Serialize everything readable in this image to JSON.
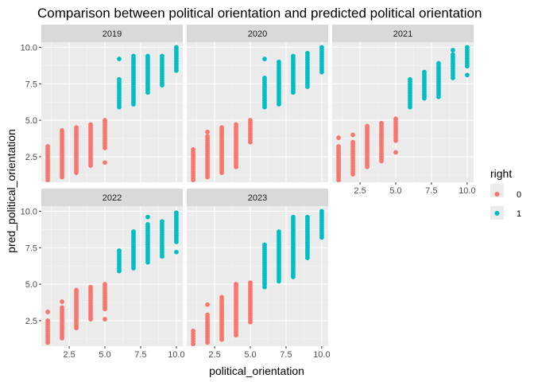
{
  "chart_data": {
    "type": "scatter",
    "title": "Comparison between political orientation and predicted political orientation",
    "xlabel": "political_orientation",
    "ylabel": "pred_political_orientation",
    "xlim": [
      0.55,
      10.45
    ],
    "ylim": [
      0.75,
      10.35
    ],
    "x_ticks": [
      2.5,
      5.0,
      7.5,
      10.0
    ],
    "x_tick_labels": [
      "2.5",
      "5.0",
      "7.5",
      "10.0"
    ],
    "y_ticks": [
      2.5,
      5.0,
      7.5,
      10.0
    ],
    "y_tick_labels": [
      "2.5",
      "5.0",
      "7.5",
      "10.0"
    ],
    "grid": true,
    "facets": [
      {
        "label": "2019",
        "ranges": [
          [
            1,
            0.9,
            3.2
          ],
          [
            2,
            1.1,
            4.3
          ],
          [
            3,
            1.4,
            4.5
          ],
          [
            4,
            1.9,
            4.7
          ],
          [
            5,
            3.1,
            5.0
          ],
          [
            6,
            5.9,
            7.8
          ],
          [
            7,
            6.1,
            9.4
          ],
          [
            8,
            6.9,
            9.3
          ],
          [
            9,
            7.4,
            9.4
          ],
          [
            10,
            8.4,
            10.0
          ]
        ],
        "outliers": [
          [
            5,
            2.1
          ],
          [
            6,
            9.2
          ],
          [
            8,
            9.4
          ]
        ]
      },
      {
        "label": "2020",
        "ranges": [
          [
            1,
            0.9,
            3.0
          ],
          [
            2,
            1.1,
            3.9
          ],
          [
            3,
            1.4,
            4.5
          ],
          [
            4,
            1.8,
            4.7
          ],
          [
            5,
            3.5,
            5.0
          ],
          [
            6,
            5.9,
            7.9
          ],
          [
            7,
            6.1,
            9.0
          ],
          [
            8,
            6.9,
            9.4
          ],
          [
            9,
            7.3,
            9.6
          ],
          [
            10,
            8.3,
            10.0
          ]
        ],
        "outliers": [
          [
            2,
            4.2
          ],
          [
            6,
            9.2
          ]
        ]
      },
      {
        "label": "2021",
        "ranges": [
          [
            1,
            0.9,
            3.2
          ],
          [
            2,
            1.3,
            3.5
          ],
          [
            3,
            1.8,
            4.6
          ],
          [
            4,
            2.2,
            4.8
          ],
          [
            5,
            3.6,
            5.1
          ],
          [
            6,
            5.9,
            7.8
          ],
          [
            7,
            6.5,
            8.3
          ],
          [
            8,
            6.6,
            8.9
          ],
          [
            9,
            7.9,
            9.5
          ],
          [
            10,
            8.7,
            10.0
          ]
        ],
        "outliers": [
          [
            1,
            3.8
          ],
          [
            2,
            4.0
          ],
          [
            5,
            2.8
          ],
          [
            9,
            9.8
          ],
          [
            10,
            8.1
          ]
        ]
      },
      {
        "label": "2022",
        "ranges": [
          [
            1,
            1.0,
            2.5
          ],
          [
            2,
            1.3,
            3.4
          ],
          [
            3,
            2.0,
            4.6
          ],
          [
            4,
            2.6,
            4.8
          ],
          [
            5,
            3.3,
            5.0
          ],
          [
            6,
            5.9,
            7.3
          ],
          [
            7,
            6.1,
            8.6
          ],
          [
            8,
            6.5,
            9.1
          ],
          [
            9,
            6.9,
            9.3
          ],
          [
            10,
            7.9,
            9.9
          ]
        ],
        "outliers": [
          [
            1,
            3.1
          ],
          [
            2,
            3.8
          ],
          [
            5,
            2.6
          ],
          [
            8,
            9.6
          ],
          [
            10,
            7.2
          ]
        ]
      },
      {
        "label": "2023",
        "ranges": [
          [
            1,
            0.9,
            1.8
          ],
          [
            2,
            1.0,
            2.9
          ],
          [
            3,
            1.2,
            4.1
          ],
          [
            4,
            1.5,
            5.0
          ],
          [
            5,
            2.4,
            5.1
          ],
          [
            6,
            5.0,
            7.7
          ],
          [
            7,
            5.2,
            8.6
          ],
          [
            8,
            5.5,
            9.6
          ],
          [
            9,
            6.8,
            9.6
          ],
          [
            10,
            8.2,
            10.0
          ]
        ],
        "outliers": [
          [
            2,
            3.6
          ],
          [
            6,
            4.8
          ]
        ]
      }
    ],
    "threshold": 5.5,
    "legend": {
      "title": "right",
      "placement": "right",
      "entries": [
        {
          "label": "0",
          "color": "#F8766D"
        },
        {
          "label": "1",
          "color": "#00BFC4"
        }
      ]
    }
  }
}
